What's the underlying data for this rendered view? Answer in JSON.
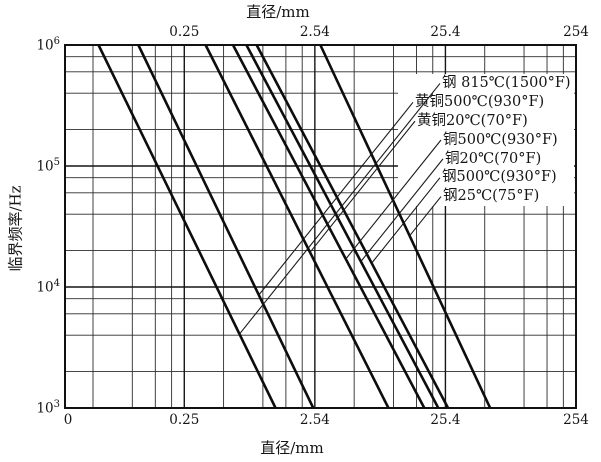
{
  "figure": {
    "top_axis_title": "直径/mm",
    "bottom_axis_title": "直径/mm",
    "y_axis_title": "临界频率/Hz"
  },
  "chart_data": {
    "type": "line",
    "title": "",
    "xlabel": "直径/mm",
    "ylabel": "临界频率/Hz",
    "x_axis": {
      "scale": "log",
      "range": [
        0.031,
        254
      ],
      "bottom_ticks": [
        {
          "label": "0",
          "value": 0.031
        },
        {
          "label": "0.25",
          "value": 0.254
        },
        {
          "label": "2.54",
          "value": 2.54
        },
        {
          "label": "25.4",
          "value": 25.4
        },
        {
          "label": "254",
          "value": 254
        }
      ],
      "top_ticks": [
        {
          "label": "0.25",
          "value": 0.254
        },
        {
          "label": "2.54",
          "value": 2.54
        },
        {
          "label": "25.4",
          "value": 25.4
        },
        {
          "label": "254",
          "value": 254
        }
      ]
    },
    "y_axis": {
      "scale": "log",
      "range": [
        1000,
        1000000
      ],
      "ticks": [
        {
          "base": "10",
          "exp": "6",
          "value": 1000000
        },
        {
          "base": "10",
          "exp": "5",
          "value": 100000
        },
        {
          "base": "10",
          "exp": "4",
          "value": 10000
        },
        {
          "base": "10",
          "exp": "3",
          "value": 1000
        }
      ]
    },
    "grid": {
      "minor_factors": [
        2,
        4,
        6,
        8
      ],
      "x_minor_bases": [
        0.0254,
        0.254,
        2.54,
        25.4
      ],
      "x_major_values": [
        0.254,
        2.54,
        25.4
      ],
      "y_minor_bases": [
        1000,
        10000,
        100000
      ],
      "y_major_values": [
        10000,
        100000
      ]
    },
    "series": [
      {
        "name": "钢 815℃(1500°F)",
        "points": [
          [
            0.056,
            1000000
          ],
          [
            1.27,
            1000
          ]
        ]
      },
      {
        "name": "黄铜500℃(930°F)",
        "points": [
          [
            0.113,
            1000000
          ],
          [
            2.47,
            1000
          ]
        ]
      },
      {
        "name": "黄铜20℃(70°F)",
        "points": [
          [
            0.37,
            1000000
          ],
          [
            9.3,
            1000
          ]
        ]
      },
      {
        "name": "铜500℃(930°F)",
        "points": [
          [
            0.6,
            1000000
          ],
          [
            17.5,
            1000
          ]
        ]
      },
      {
        "name": "铜20℃(70°F)",
        "points": [
          [
            0.76,
            1000000
          ],
          [
            22.4,
            1000
          ]
        ]
      },
      {
        "name": "钢500℃(930°F)",
        "points": [
          [
            0.91,
            1000000
          ],
          [
            26.6,
            1000
          ]
        ]
      },
      {
        "name": "钢25℃(75°F)",
        "points": [
          [
            2.8,
            1000000
          ],
          [
            55.9,
            1000
          ]
        ]
      }
    ],
    "legend": {
      "position": "upper-right",
      "has_leader_lines": true
    },
    "colors": {
      "ink": "#151515",
      "background": "#ffffff"
    }
  }
}
